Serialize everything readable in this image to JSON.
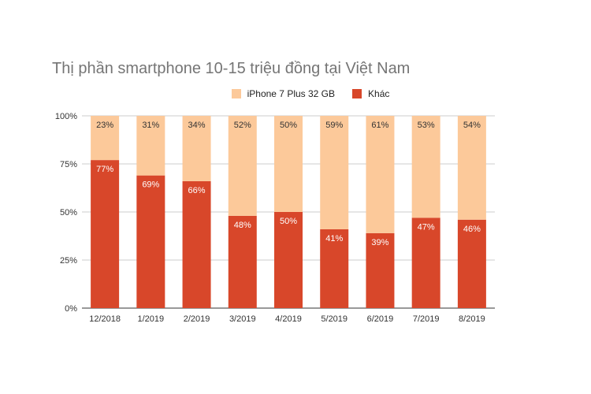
{
  "chart_data": {
    "type": "bar",
    "stacked": true,
    "title": "Thị phần smartphone 10-15 triệu đồng tại Việt Nam",
    "categories": [
      "12/2018",
      "1/2019",
      "2/2019",
      "3/2019",
      "4/2019",
      "5/2019",
      "6/2019",
      "7/2019",
      "8/2019"
    ],
    "series": [
      {
        "name": "iPhone 7 Plus 32 GB",
        "color": "#fcc99a",
        "values": [
          23,
          31,
          34,
          52,
          50,
          59,
          61,
          53,
          54
        ],
        "labels": [
          "23%",
          "31%",
          "34%",
          "52%",
          "50%",
          "59%",
          "61%",
          "53%",
          "54%"
        ]
      },
      {
        "name": "Khác",
        "color": "#d8472a",
        "values": [
          77,
          69,
          66,
          48,
          50,
          41,
          39,
          47,
          46
        ],
        "labels": [
          "77%",
          "69%",
          "66%",
          "48%",
          "50%",
          "41%",
          "39%",
          "47%",
          "46%"
        ]
      }
    ],
    "ylim": [
      0,
      100
    ],
    "yticks": [
      "0%",
      "25%",
      "50%",
      "75%",
      "100%"
    ],
    "grid": true,
    "legend_position": "top"
  }
}
